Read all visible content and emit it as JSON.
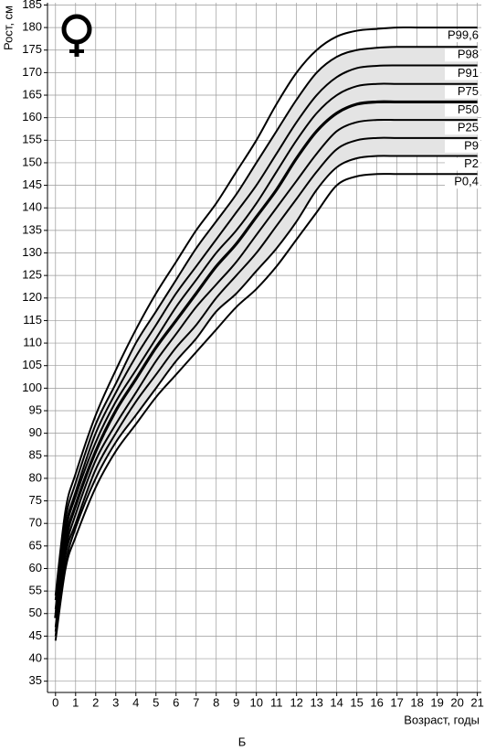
{
  "chart_data": {
    "type": "line",
    "y_label": "Рост, см",
    "x_label": "Возраст, годы",
    "caption": "Б",
    "x": [
      0,
      0.5,
      1,
      2,
      3,
      4,
      5,
      6,
      7,
      8,
      9,
      10,
      11,
      12,
      13,
      14,
      15,
      16,
      17,
      18,
      19,
      20,
      21
    ],
    "series": [
      {
        "name": "P99,6",
        "color": "#000000",
        "width": 2,
        "values": [
          54,
          73,
          81,
          94,
          104,
          113,
          121,
          128,
          135,
          141,
          148,
          155,
          163,
          170,
          175,
          178,
          179.3,
          179.7,
          180,
          180,
          180,
          180,
          180
        ]
      },
      {
        "name": "P98",
        "color": "#000000",
        "width": 2,
        "values": [
          53,
          71,
          79,
          92,
          101,
          110,
          117,
          124,
          131,
          137,
          143,
          150,
          157,
          164,
          170,
          173.5,
          175,
          175.5,
          175.7,
          175.7,
          175.7,
          175.7,
          175.7
        ]
      },
      {
        "name": "P91",
        "color": "#000000",
        "width": 2,
        "values": [
          51,
          69,
          77,
          90,
          99,
          107,
          114,
          121,
          127,
          133,
          139,
          145,
          152,
          159,
          165,
          169,
          171,
          171.5,
          171.6,
          171.6,
          171.6,
          171.6,
          171.6
        ]
      },
      {
        "name": "P75",
        "color": "#000000",
        "width": 2,
        "values": [
          50,
          68,
          76,
          88,
          97,
          104,
          111,
          118,
          124,
          130,
          135,
          141,
          148,
          155,
          161,
          165,
          167,
          167.5,
          167.5,
          167.5,
          167.5,
          167.5,
          167.5
        ]
      },
      {
        "name": "P50",
        "color": "#000000",
        "width": 3.2,
        "values": [
          49,
          66,
          74,
          86,
          95,
          102,
          109,
          115,
          121,
          127,
          132,
          138,
          144,
          151,
          157,
          161,
          163,
          163.5,
          163.5,
          163.5,
          163.5,
          163.5,
          163.5
        ]
      },
      {
        "name": "P25",
        "color": "#000000",
        "width": 2,
        "values": [
          47,
          64,
          72,
          84,
          92,
          99,
          106,
          112,
          118,
          123,
          128,
          134,
          140,
          146,
          152,
          157,
          159,
          159.5,
          159.5,
          159.5,
          159.5,
          159.5,
          159.5
        ]
      },
      {
        "name": "P9",
        "color": "#000000",
        "width": 2,
        "values": [
          46,
          63,
          70,
          82,
          90,
          97,
          103,
          109,
          114,
          120,
          125,
          130,
          136,
          142,
          148,
          153,
          155,
          155.5,
          155.5,
          155.5,
          155.5,
          155.5,
          155.5
        ]
      },
      {
        "name": "P2",
        "color": "#000000",
        "width": 2,
        "values": [
          45,
          61,
          69,
          80,
          88,
          94,
          100,
          106,
          111,
          117,
          121,
          126,
          131,
          137,
          144,
          149,
          151,
          151.5,
          151.5,
          151.5,
          151.5,
          151.5,
          151.5
        ]
      },
      {
        "name": "P0,4",
        "color": "#000000",
        "width": 2,
        "values": [
          44,
          60,
          67,
          78,
          86,
          92,
          98,
          103,
          108,
          113,
          118,
          122,
          127,
          133,
          139,
          145,
          147,
          147.5,
          147.5,
          147.5,
          147.5,
          147.5,
          147.5
        ]
      }
    ],
    "shaded_band": {
      "from": 7,
      "to": 1,
      "color": "#e4e4e4"
    },
    "xlim": [
      -0.4,
      21.2
    ],
    "xticks": [
      0,
      1,
      2,
      3,
      4,
      5,
      6,
      7,
      8,
      9,
      10,
      11,
      12,
      13,
      14,
      15,
      16,
      17,
      18,
      19,
      20,
      21
    ],
    "ylim": [
      32.5,
      185.5
    ],
    "yticks": [
      35,
      40,
      45,
      50,
      55,
      60,
      65,
      70,
      75,
      80,
      85,
      90,
      95,
      100,
      105,
      110,
      115,
      120,
      125,
      130,
      135,
      140,
      145,
      150,
      155,
      160,
      165,
      170,
      175,
      180,
      185
    ],
    "grid": true
  }
}
